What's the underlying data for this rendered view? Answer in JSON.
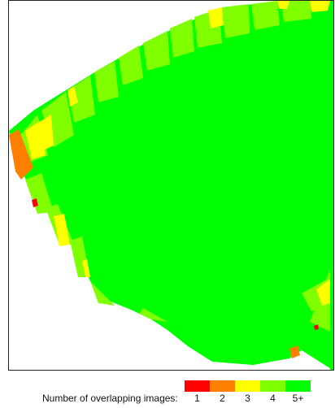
{
  "map": {
    "colors": {
      "one": "#ff0000",
      "two": "#ff8000",
      "three": "#ffff00",
      "four": "#80ff00",
      "five_plus": "#00ff00"
    }
  },
  "legend": {
    "title": "Number of overlapping images:",
    "items": [
      {
        "label": "1",
        "color": "#ff0000"
      },
      {
        "label": "2",
        "color": "#ff8000"
      },
      {
        "label": "3",
        "color": "#ffff00"
      },
      {
        "label": "4",
        "color": "#80ff00"
      },
      {
        "label": "5+",
        "color": "#00ff00"
      }
    ]
  }
}
